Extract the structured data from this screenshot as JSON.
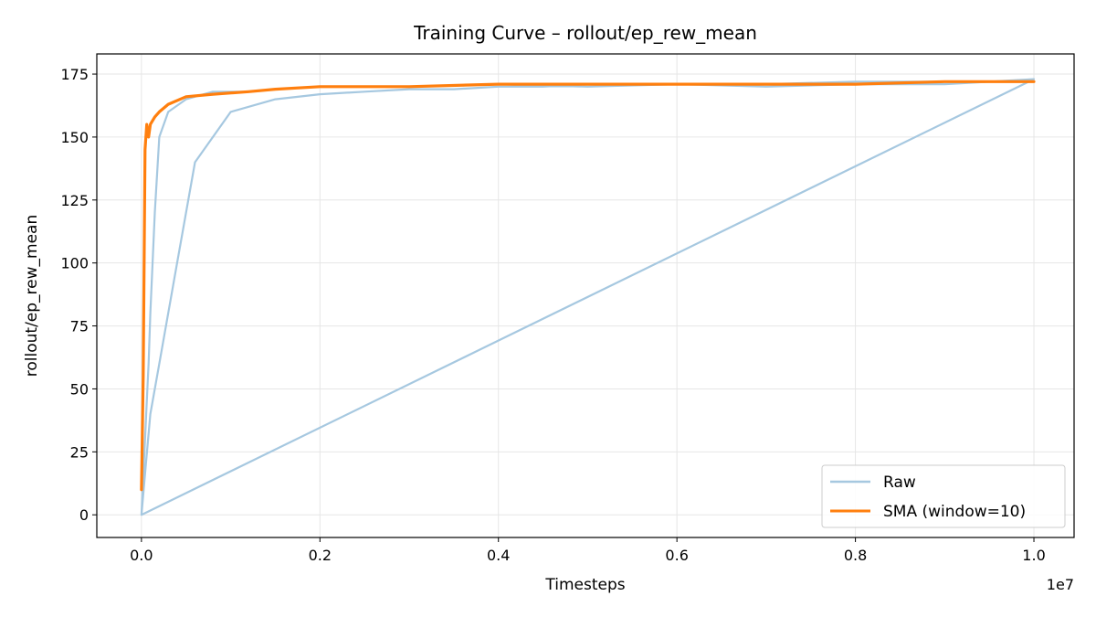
{
  "chart_data": {
    "type": "line",
    "title": "Training Curve – rollout/ep_rew_mean",
    "xlabel": "Timesteps",
    "ylabel": "rollout/ep_rew_mean",
    "x_offset_label": "1e7",
    "xlim": [
      -0.05,
      1.045
    ],
    "ylim": [
      -9,
      183
    ],
    "x_ticks": [
      0.0,
      0.2,
      0.4,
      0.6,
      0.8,
      1.0
    ],
    "x_tick_labels": [
      "0.0",
      "0.2",
      "0.4",
      "0.6",
      "0.8",
      "1.0"
    ],
    "y_ticks": [
      0,
      25,
      50,
      75,
      100,
      125,
      150,
      175
    ],
    "y_tick_labels": [
      "0",
      "25",
      "50",
      "75",
      "100",
      "125",
      "150",
      "175"
    ],
    "grid": true,
    "legend_position": "lower-right",
    "colors": {
      "raw": "#a6c8e0",
      "sma": "#ff7f0e",
      "grid": "#e6e6e6",
      "axis": "#000000"
    },
    "series": [
      {
        "name": "Raw",
        "x": [
          0.0,
          0.002,
          0.004,
          0.006,
          0.008,
          0.01,
          0.015,
          0.02,
          0.03,
          0.05,
          0.08,
          0.12,
          0.15,
          0.2,
          0.3,
          0.4,
          0.5,
          0.6,
          0.7,
          0.8,
          0.9,
          1.0,
          0.0,
          0.005,
          0.01,
          0.02,
          0.04,
          0.06,
          0.1,
          0.15,
          0.2,
          0.25,
          0.3,
          0.35,
          0.4,
          0.45,
          0.5,
          0.55,
          0.6,
          0.7,
          0.8,
          0.9,
          1.0
        ],
        "y": [
          0,
          15,
          30,
          45,
          60,
          80,
          120,
          150,
          160,
          165,
          168,
          168,
          169,
          170,
          170,
          171,
          170,
          171,
          170,
          171,
          171,
          173,
          0,
          20,
          40,
          60,
          100,
          140,
          160,
          165,
          167,
          168,
          169,
          169,
          170,
          170,
          171,
          171,
          171,
          171,
          172,
          172,
          172
        ]
      },
      {
        "name": "SMA (window=10)",
        "x": [
          0.0,
          0.002,
          0.004,
          0.006,
          0.008,
          0.01,
          0.015,
          0.02,
          0.03,
          0.05,
          0.08,
          0.12,
          0.15,
          0.2,
          0.3,
          0.4,
          0.5,
          0.6,
          0.7,
          0.8,
          0.9,
          1.0
        ],
        "y": [
          10,
          55,
          145,
          155,
          150,
          155,
          158,
          160,
          163,
          166,
          167,
          168,
          169,
          170,
          170,
          171,
          171,
          171,
          171,
          171,
          172,
          172
        ]
      }
    ]
  }
}
